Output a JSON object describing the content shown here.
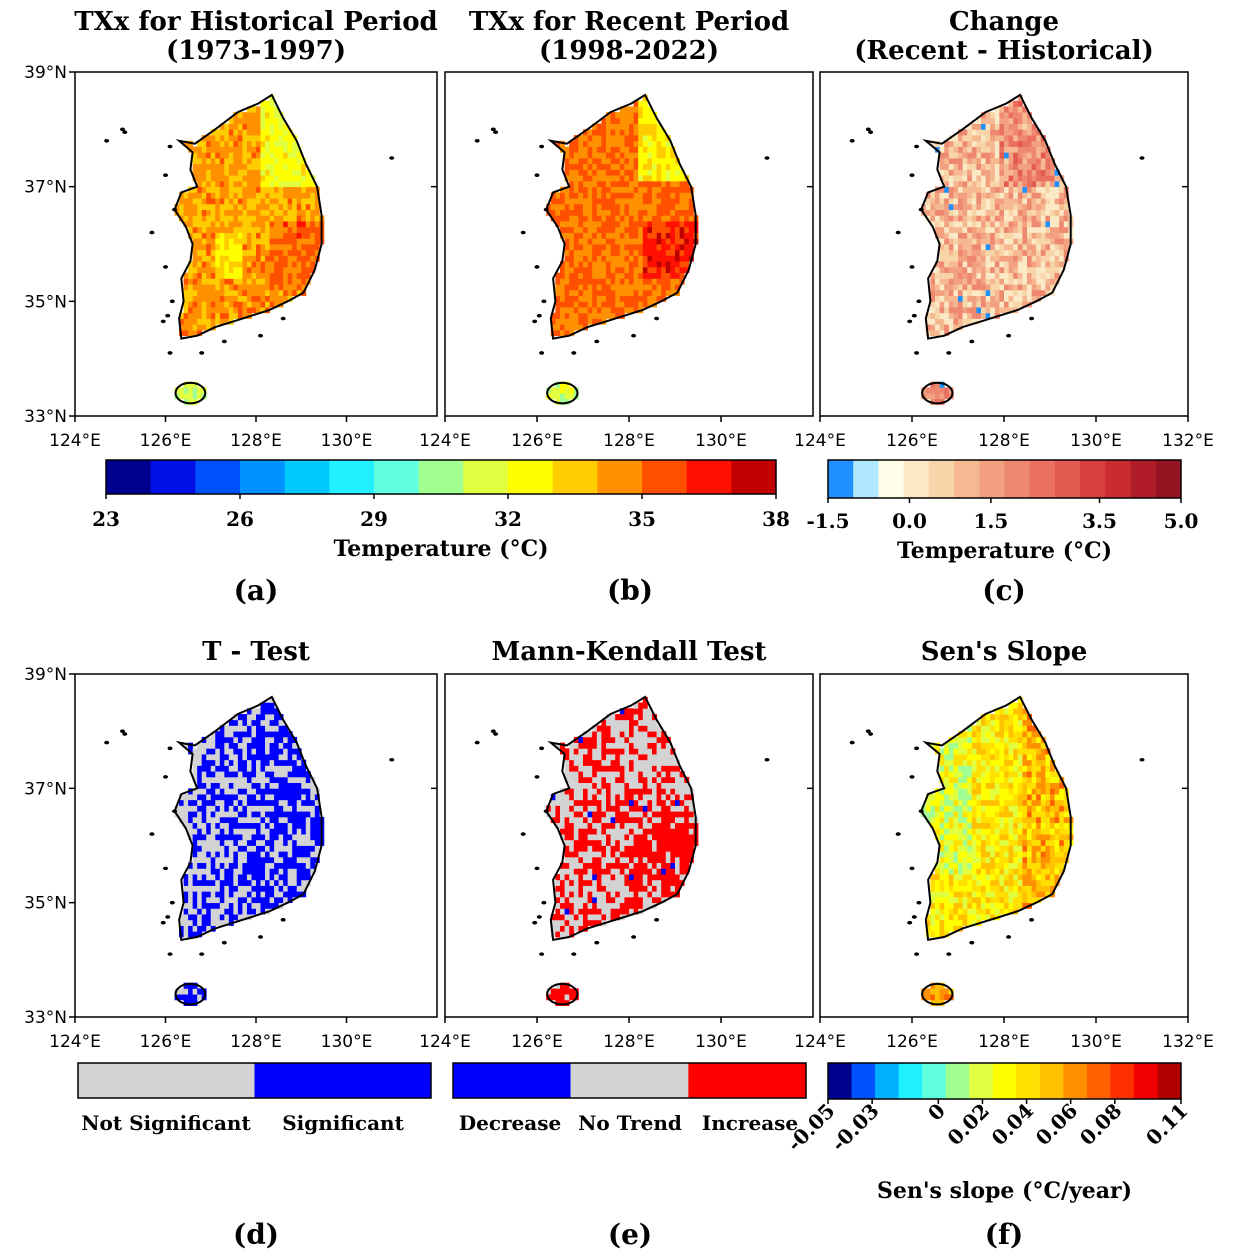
{
  "chart_data": [
    {
      "type": "heatmap",
      "panel_label": "(a)",
      "title": [
        "TXx for Historical Period",
        "(1973-1997)"
      ],
      "xlim": [
        124,
        130
      ],
      "ylim": [
        33,
        39
      ],
      "x_ticks": [
        "124°E",
        "126°E",
        "128°E",
        "130°E"
      ],
      "y_ticks": [
        "39°N",
        "37°N",
        "35°N",
        "33°N"
      ],
      "field": "hist"
    },
    {
      "type": "heatmap",
      "panel_label": "(b)",
      "title": [
        "TXx for Recent Period",
        "(1998-2022)"
      ],
      "xlim": [
        124,
        130
      ],
      "ylim": [
        33,
        39
      ],
      "x_ticks": [
        "124°E",
        "126°E",
        "128°E",
        "130°E"
      ],
      "y_ticks": [],
      "field": "recent"
    },
    {
      "type": "heatmap",
      "panel_label": "(c)",
      "title": [
        "Change",
        "(Recent - Historical)"
      ],
      "xlim": [
        124,
        132
      ],
      "ylim": [
        33,
        39
      ],
      "x_ticks": [
        "124°E",
        "126°E",
        "128°E",
        "130°E",
        "132°E"
      ],
      "y_ticks": [],
      "field": "change"
    },
    {
      "type": "heatmap",
      "panel_label": "(d)",
      "title": [
        "T - Test"
      ],
      "xlim": [
        124,
        130
      ],
      "ylim": [
        33,
        39
      ],
      "x_ticks": [
        "124°E",
        "126°E",
        "128°E",
        "130°E"
      ],
      "y_ticks": [
        "39°N",
        "37°N",
        "35°N",
        "33°N"
      ],
      "field": "ttest"
    },
    {
      "type": "heatmap",
      "panel_label": "(e)",
      "title": [
        "Mann-Kendall Test"
      ],
      "xlim": [
        124,
        130
      ],
      "ylim": [
        33,
        39
      ],
      "x_ticks": [
        "124°E",
        "126°E",
        "128°E",
        "130°E"
      ],
      "y_ticks": [],
      "field": "mk"
    },
    {
      "type": "heatmap",
      "panel_label": "(f)",
      "title": [
        "Sen's Slope"
      ],
      "xlim": [
        124,
        132
      ],
      "ylim": [
        33,
        39
      ],
      "x_ticks": [
        "124°E",
        "126°E",
        "128°E",
        "130°E",
        "132°E"
      ],
      "y_ticks": [],
      "field": "sen"
    }
  ],
  "colorbars": [
    {
      "label": "Temperature (°C)",
      "range": [
        23,
        38
      ],
      "ticks": [
        "23",
        "26",
        "29",
        "32",
        "35",
        "38"
      ],
      "colors": [
        "#00008f",
        "#0010e6",
        "#0050ff",
        "#0090ff",
        "#00c8ff",
        "#20f0ff",
        "#60ffe0",
        "#a0ff90",
        "#e0ff40",
        "#ffff00",
        "#ffcc00",
        "#ff9000",
        "#ff5000",
        "#ff1000",
        "#c00000"
      ]
    },
    {
      "label": "Temperature (°C)",
      "range": [
        -1.5,
        5.0
      ],
      "ticks": [
        "-1.5",
        "0.0",
        "1.5",
        "3.5",
        "5.0"
      ],
      "colors": [
        "#1e90ff",
        "#b0e8ff",
        "#fffce8",
        "#fbe8c4",
        "#f8d5a8",
        "#f5b890",
        "#f2a080",
        "#ee8870",
        "#ea7060",
        "#e25a50",
        "#d84040",
        "#c82c32",
        "#b01c28",
        "#961422"
      ]
    },
    {
      "categories": [
        "Not Significant",
        "Significant"
      ],
      "colors": [
        "#d3d3d3",
        "#0000ff"
      ]
    },
    {
      "categories": [
        "Decrease",
        "No Trend",
        "Increase"
      ],
      "colors": [
        "#0000ff",
        "#d3d3d3",
        "#ff0000"
      ]
    },
    {
      "label": "Sen's slope (°C/year)",
      "range": [
        -0.05,
        0.11
      ],
      "ticks": [
        "-0.05",
        "-0.03",
        "0",
        "0.02",
        "0.04",
        "0.06",
        "0.08",
        "0.11"
      ],
      "colors": [
        "#00008f",
        "#0050ff",
        "#00b0ff",
        "#20f0ff",
        "#60ffe0",
        "#a0ff90",
        "#e0ff40",
        "#ffff00",
        "#ffe000",
        "#ffc000",
        "#ff9000",
        "#ff6000",
        "#ff3000",
        "#f00000",
        "#b00000"
      ]
    }
  ]
}
